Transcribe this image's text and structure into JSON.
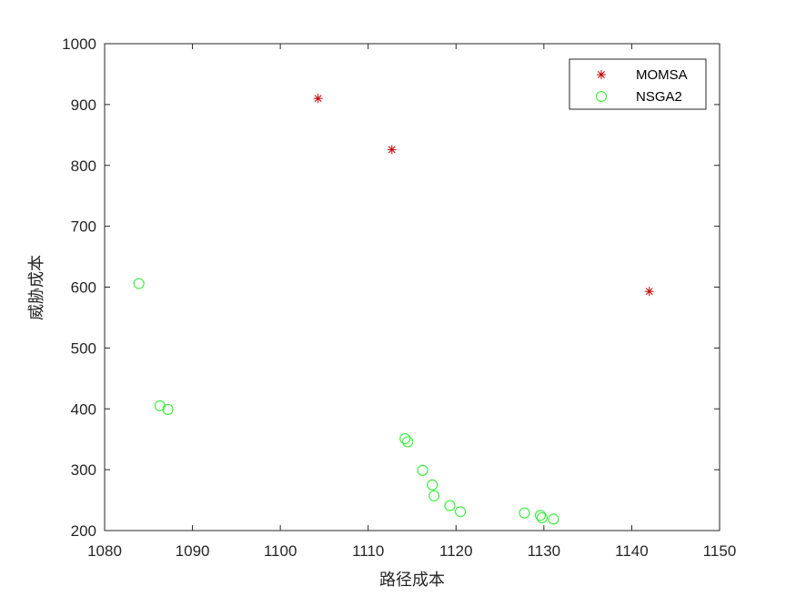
{
  "chart_data": {
    "type": "scatter",
    "title": "",
    "xlabel": "路径成本",
    "ylabel": "威胁成本",
    "xlim": [
      1080,
      1150
    ],
    "ylim": [
      200,
      1000
    ],
    "xticks": [
      1080,
      1090,
      1100,
      1110,
      1120,
      1130,
      1140,
      1150
    ],
    "yticks": [
      200,
      300,
      400,
      500,
      600,
      700,
      800,
      900,
      1000
    ],
    "grid": false,
    "legend_position": "top-right",
    "series": [
      {
        "name": "MOMSA",
        "marker": "asterisk",
        "color": "#c00000",
        "points": [
          {
            "x": 1104.3,
            "y": 910
          },
          {
            "x": 1112.7,
            "y": 826
          },
          {
            "x": 1142.0,
            "y": 593
          }
        ]
      },
      {
        "name": "NSGA2",
        "marker": "circle",
        "color": "#33ee33",
        "points": [
          {
            "x": 1083.9,
            "y": 606
          },
          {
            "x": 1086.3,
            "y": 405
          },
          {
            "x": 1087.2,
            "y": 399
          },
          {
            "x": 1114.2,
            "y": 351
          },
          {
            "x": 1114.5,
            "y": 346
          },
          {
            "x": 1116.2,
            "y": 299
          },
          {
            "x": 1117.3,
            "y": 275
          },
          {
            "x": 1117.5,
            "y": 257
          },
          {
            "x": 1119.3,
            "y": 241
          },
          {
            "x": 1120.5,
            "y": 231
          },
          {
            "x": 1127.8,
            "y": 229
          },
          {
            "x": 1129.6,
            "y": 225
          },
          {
            "x": 1129.8,
            "y": 221
          },
          {
            "x": 1131.1,
            "y": 219
          }
        ]
      }
    ]
  }
}
